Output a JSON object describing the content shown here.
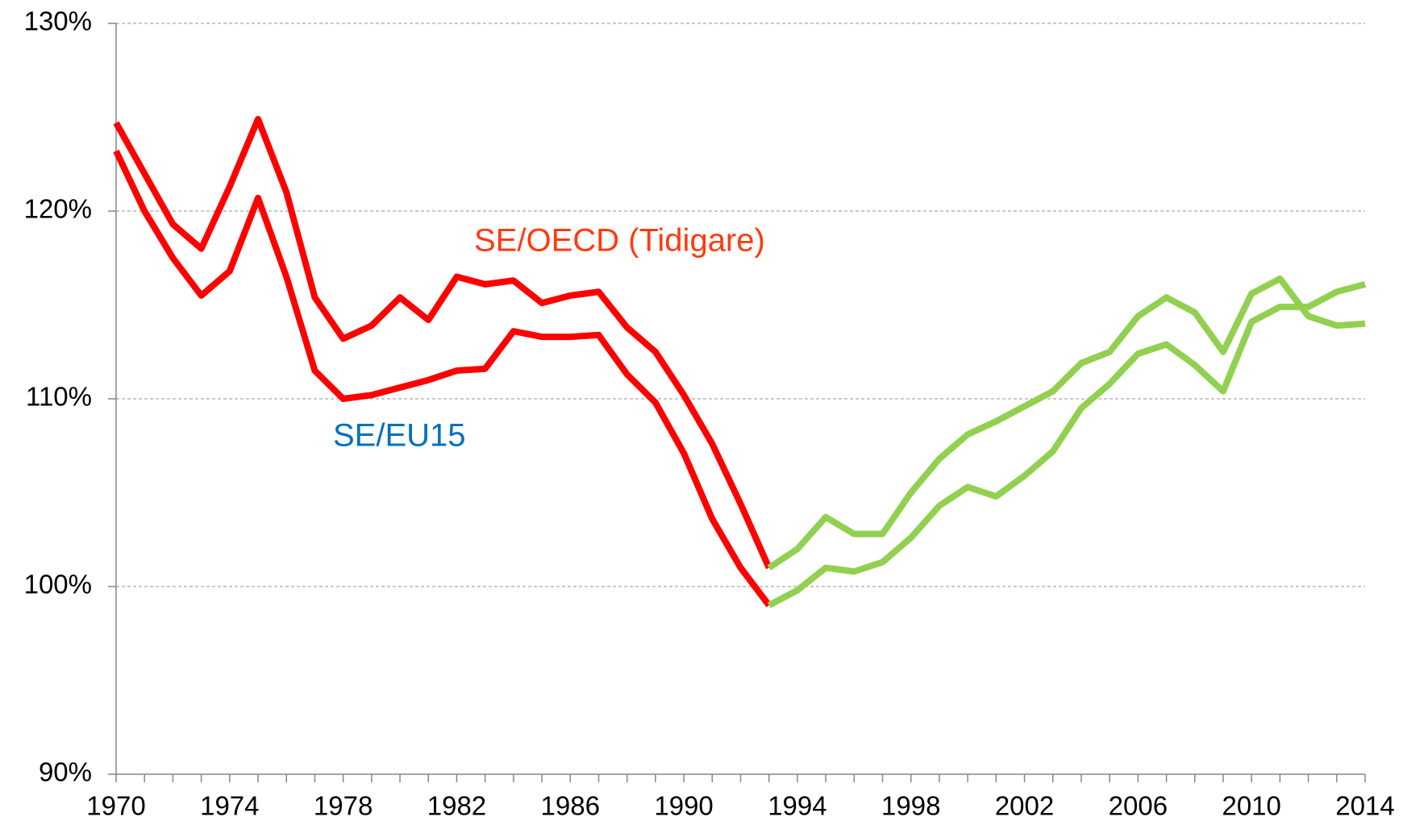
{
  "chart_data": {
    "type": "line",
    "x": [
      1970,
      1971,
      1972,
      1973,
      1974,
      1975,
      1976,
      1977,
      1978,
      1979,
      1980,
      1981,
      1982,
      1983,
      1984,
      1985,
      1986,
      1987,
      1988,
      1989,
      1990,
      1991,
      1992,
      1993,
      1994,
      1995,
      1996,
      1997,
      1998,
      1999,
      2000,
      2001,
      2002,
      2003,
      2004,
      2005,
      2006,
      2007,
      2008,
      2009,
      2010,
      2011,
      2012,
      2013,
      2014
    ],
    "series": [
      {
        "color": "#ff0000",
        "values": [
          124.7,
          122.0,
          119.3,
          118.0,
          121.3,
          124.9,
          121.0,
          115.4,
          113.2,
          113.9,
          115.4,
          114.2,
          116.5,
          116.1,
          116.3,
          115.1,
          115.5,
          115.7,
          113.8,
          112.5,
          110.2,
          107.6,
          104.4,
          101.0,
          null,
          null,
          null,
          null,
          null,
          null,
          null,
          null,
          null,
          null,
          null,
          null,
          null,
          null,
          null,
          null,
          null,
          null,
          null,
          null,
          null
        ]
      },
      {
        "color": "#ff0000",
        "values": [
          123.2,
          120.0,
          117.5,
          115.5,
          116.8,
          120.7,
          116.5,
          111.5,
          110.0,
          110.2,
          110.6,
          111.0,
          111.5,
          111.6,
          113.6,
          113.3,
          113.3,
          113.4,
          111.3,
          109.8,
          107.1,
          103.6,
          101.0,
          99.0,
          null,
          null,
          null,
          null,
          null,
          null,
          null,
          null,
          null,
          null,
          null,
          null,
          null,
          null,
          null,
          null,
          null,
          null,
          null,
          null,
          null
        ]
      },
      {
        "color": "#92d050",
        "values": [
          null,
          null,
          null,
          null,
          null,
          null,
          null,
          null,
          null,
          null,
          null,
          null,
          null,
          null,
          null,
          null,
          null,
          null,
          null,
          null,
          null,
          null,
          null,
          101.0,
          102.0,
          103.7,
          102.8,
          102.8,
          105.0,
          106.8,
          108.1,
          108.8,
          109.6,
          110.4,
          111.9,
          112.5,
          114.4,
          115.4,
          114.6,
          112.5,
          115.6,
          116.4,
          114.4,
          113.9,
          114.0
        ]
      },
      {
        "color": "#92d050",
        "values": [
          null,
          null,
          null,
          null,
          null,
          null,
          null,
          null,
          null,
          null,
          null,
          null,
          null,
          null,
          null,
          null,
          null,
          null,
          null,
          null,
          null,
          null,
          null,
          99.0,
          99.8,
          101.0,
          100.8,
          101.3,
          102.6,
          104.3,
          105.3,
          104.8,
          105.9,
          107.2,
          109.5,
          110.8,
          112.4,
          112.9,
          111.8,
          110.4,
          114.1,
          114.9,
          114.9,
          115.7,
          116.1
        ]
      }
    ],
    "annotations": [
      {
        "text": "SE/OECD (Tidigare)",
        "color": "#ff3a10"
      },
      {
        "text": "SE/EU15",
        "color": "#0070c0"
      }
    ],
    "xlim": [
      1970,
      2014
    ],
    "xticks": [
      1970,
      1974,
      1978,
      1982,
      1986,
      1990,
      1994,
      1998,
      2002,
      2006,
      2010,
      2014
    ],
    "ylim": [
      90,
      130
    ],
    "yticks": [
      {
        "value": 90,
        "label": "90%"
      },
      {
        "value": 100,
        "label": "100%"
      },
      {
        "value": 110,
        "label": "110%"
      },
      {
        "value": 120,
        "label": "120%"
      },
      {
        "value": 130,
        "label": "130%"
      }
    ],
    "grid": true
  }
}
